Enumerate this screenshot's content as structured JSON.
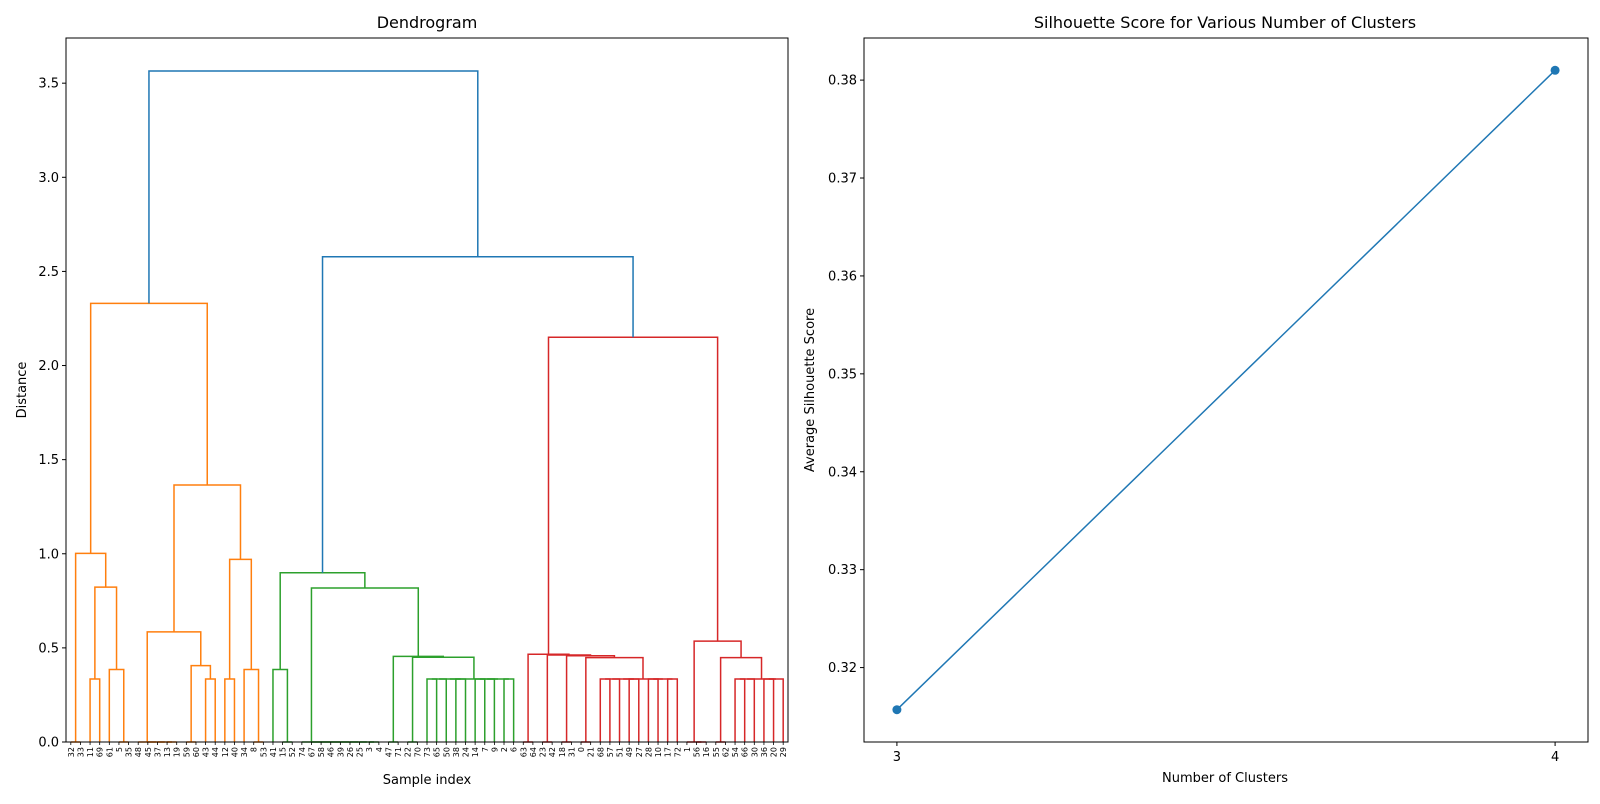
{
  "chart_data": [
    {
      "type": "dendrogram",
      "title": "Dendrogram",
      "xlabel": "Sample index",
      "ylabel": "Distance",
      "ylim": [
        0,
        3.74
      ],
      "yticks": [
        "0.0",
        "0.5",
        "1.0",
        "1.5",
        "2.0",
        "2.5",
        "3.0",
        "3.5"
      ],
      "ytick_values": [
        0,
        0.5,
        1.0,
        1.5,
        2.0,
        2.5,
        3.0,
        3.5
      ],
      "grid": false,
      "leaf_labels": [
        "32",
        "33",
        "11",
        "69",
        "61",
        "5",
        "35",
        "48",
        "45",
        "37",
        "13",
        "19",
        "59",
        "60",
        "43",
        "44",
        "12",
        "40",
        "34",
        "8",
        "53",
        "41",
        "15",
        "52",
        "74",
        "67",
        "58",
        "46",
        "39",
        "26",
        "25",
        "3",
        "4",
        "47",
        "71",
        "22",
        "70",
        "73",
        "65",
        "50",
        "38",
        "24",
        "14",
        "7",
        "9",
        "2",
        "6",
        "63",
        "64",
        "23",
        "42",
        "18",
        "31",
        "0",
        "21",
        "68",
        "57",
        "51",
        "49",
        "27",
        "28",
        "10",
        "17",
        "72",
        "1",
        "56",
        "16",
        "55",
        "62",
        "54",
        "66",
        "30",
        "36",
        "20",
        "29"
      ],
      "colors": {
        "orange": "#ff7f0e",
        "green": "#2ca02c",
        "red": "#d62728",
        "above_threshold": "#1f77b4"
      },
      "links": [
        {
          "id": "o1",
          "children": [
            0,
            1
          ],
          "height": 0,
          "color": "orange"
        },
        {
          "id": "o2",
          "children": [
            2,
            3
          ],
          "height": 0.335,
          "color": "orange"
        },
        {
          "id": "o3",
          "children": [
            5,
            6
          ],
          "height": 0,
          "color": "orange"
        },
        {
          "id": "o4",
          "children": [
            4,
            "o3"
          ],
          "height": 0.385,
          "color": "orange"
        },
        {
          "id": "o5",
          "children": [
            "o2",
            "o4"
          ],
          "height": 0.823,
          "color": "orange"
        },
        {
          "id": "o6",
          "children": [
            "o1",
            "o5"
          ],
          "height": 1.002,
          "color": "orange"
        },
        {
          "id": "o7",
          "children": [
            10,
            11
          ],
          "height": 0,
          "color": "orange"
        },
        {
          "id": "o8",
          "children": [
            9,
            "o7"
          ],
          "height": 0,
          "color": "orange"
        },
        {
          "id": "o9",
          "children": [
            8,
            "o8"
          ],
          "height": 0,
          "color": "orange"
        },
        {
          "id": "o10",
          "children": [
            7,
            "o9"
          ],
          "height": 0,
          "color": "orange"
        },
        {
          "id": "o11",
          "children": [
            12,
            13
          ],
          "height": 0,
          "color": "orange"
        },
        {
          "id": "o12",
          "children": [
            14,
            15
          ],
          "height": 0.335,
          "color": "orange"
        },
        {
          "id": "o13",
          "children": [
            "o11",
            "o12"
          ],
          "height": 0.406,
          "color": "orange"
        },
        {
          "id": "o14",
          "children": [
            "o10",
            "o13"
          ],
          "height": 0.585,
          "color": "orange"
        },
        {
          "id": "o15",
          "children": [
            16,
            17
          ],
          "height": 0.335,
          "color": "orange"
        },
        {
          "id": "o16",
          "children": [
            19,
            20
          ],
          "height": 0,
          "color": "orange"
        },
        {
          "id": "o17",
          "children": [
            18,
            "o16"
          ],
          "height": 0.385,
          "color": "orange"
        },
        {
          "id": "o18",
          "children": [
            "o15",
            "o17"
          ],
          "height": 0.97,
          "color": "orange"
        },
        {
          "id": "o19",
          "children": [
            "o14",
            "o18"
          ],
          "height": 1.365,
          "color": "orange"
        },
        {
          "id": "o20",
          "children": [
            "o6",
            "o19"
          ],
          "height": 2.33,
          "color": "orange"
        },
        {
          "id": "g1",
          "children": [
            22,
            23
          ],
          "height": 0,
          "color": "green"
        },
        {
          "id": "g2",
          "children": [
            21,
            "g1"
          ],
          "height": 0.385,
          "color": "green"
        },
        {
          "id": "g3",
          "children": [
            31,
            32
          ],
          "height": 0,
          "color": "green"
        },
        {
          "id": "g4",
          "children": [
            30,
            "g3"
          ],
          "height": 0,
          "color": "green"
        },
        {
          "id": "g5",
          "children": [
            29,
            "g4"
          ],
          "height": 0,
          "color": "green"
        },
        {
          "id": "g6",
          "children": [
            28,
            "g5"
          ],
          "height": 0,
          "color": "green"
        },
        {
          "id": "g7",
          "children": [
            27,
            "g6"
          ],
          "height": 0,
          "color": "green"
        },
        {
          "id": "g8",
          "children": [
            26,
            "g7"
          ],
          "height": 0,
          "color": "green"
        },
        {
          "id": "g9",
          "children": [
            25,
            "g8"
          ],
          "height": 0,
          "color": "green"
        },
        {
          "id": "g10",
          "children": [
            24,
            "g9"
          ],
          "height": 0,
          "color": "green"
        },
        {
          "id": "g11",
          "children": [
            33,
            34
          ],
          "height": 0,
          "color": "green"
        },
        {
          "id": "g12",
          "children": [
            35,
            36
          ],
          "height": 0,
          "color": "green"
        },
        {
          "id": "g13",
          "children": [
            37,
            38
          ],
          "height": 0.335,
          "color": "green"
        },
        {
          "id": "g14",
          "children": [
            "g13",
            39
          ],
          "height": 0.335,
          "color": "green"
        },
        {
          "id": "g15",
          "children": [
            40,
            41
          ],
          "height": 0.335,
          "color": "green"
        },
        {
          "id": "g16",
          "children": [
            "g14",
            "g15"
          ],
          "height": 0.335,
          "color": "green"
        },
        {
          "id": "g17",
          "children": [
            42,
            43
          ],
          "height": 0.335,
          "color": "green"
        },
        {
          "id": "g18",
          "children": [
            "g17",
            44
          ],
          "height": 0.335,
          "color": "green"
        },
        {
          "id": "g19",
          "children": [
            45,
            46
          ],
          "height": 0.335,
          "color": "green"
        },
        {
          "id": "g20",
          "children": [
            "g18",
            "g19"
          ],
          "height": 0.335,
          "color": "green"
        },
        {
          "id": "g21",
          "children": [
            "g16",
            "g20"
          ],
          "height": 0.335,
          "color": "green"
        },
        {
          "id": "g22",
          "children": [
            "g12",
            "g21"
          ],
          "height": 0.45,
          "color": "green"
        },
        {
          "id": "g23",
          "children": [
            "g11",
            "g22"
          ],
          "height": 0.455,
          "color": "green"
        },
        {
          "id": "g24",
          "children": [
            "g10",
            "g23"
          ],
          "height": 0.818,
          "color": "green"
        },
        {
          "id": "g25",
          "children": [
            "g2",
            "g24"
          ],
          "height": 0.899,
          "color": "green"
        },
        {
          "id": "r1",
          "children": [
            47,
            48
          ],
          "height": 0,
          "color": "red"
        },
        {
          "id": "r2",
          "children": [
            49,
            50
          ],
          "height": 0,
          "color": "red"
        },
        {
          "id": "r3",
          "children": [
            51,
            52
          ],
          "height": 0,
          "color": "red"
        },
        {
          "id": "r4",
          "children": [
            53,
            54
          ],
          "height": 0,
          "color": "red"
        },
        {
          "id": "r5",
          "children": [
            55,
            56
          ],
          "height": 0.335,
          "color": "red"
        },
        {
          "id": "r6",
          "children": [
            "r5",
            57
          ],
          "height": 0.335,
          "color": "red"
        },
        {
          "id": "r7",
          "children": [
            58,
            59
          ],
          "height": 0.335,
          "color": "red"
        },
        {
          "id": "r8",
          "children": [
            "r6",
            "r7"
          ],
          "height": 0.335,
          "color": "red"
        },
        {
          "id": "r9",
          "children": [
            60,
            61
          ],
          "height": 0.335,
          "color": "red"
        },
        {
          "id": "r10",
          "children": [
            62,
            63
          ],
          "height": 0.335,
          "color": "red"
        },
        {
          "id": "r11",
          "children": [
            "r9",
            "r10"
          ],
          "height": 0.335,
          "color": "red"
        },
        {
          "id": "r12",
          "children": [
            "r8",
            "r11"
          ],
          "height": 0.335,
          "color": "red"
        },
        {
          "id": "r13",
          "children": [
            "r4",
            "r12"
          ],
          "height": 0.448,
          "color": "red"
        },
        {
          "id": "r14",
          "children": [
            "r3",
            "r13"
          ],
          "height": 0.458,
          "color": "red"
        },
        {
          "id": "r15",
          "children": [
            "r2",
            "r14"
          ],
          "height": 0.462,
          "color": "red"
        },
        {
          "id": "r16",
          "children": [
            "r1",
            "r15"
          ],
          "height": 0.466,
          "color": "red"
        },
        {
          "id": "r17",
          "children": [
            65,
            66
          ],
          "height": 0,
          "color": "red"
        },
        {
          "id": "r18",
          "children": [
            64,
            "r17"
          ],
          "height": 0,
          "color": "red"
        },
        {
          "id": "r19",
          "children": [
            67,
            68
          ],
          "height": 0,
          "color": "red"
        },
        {
          "id": "r20",
          "children": [
            69,
            70
          ],
          "height": 0.335,
          "color": "red"
        },
        {
          "id": "r21",
          "children": [
            "r20",
            71
          ],
          "height": 0.335,
          "color": "red"
        },
        {
          "id": "r22",
          "children": [
            72,
            73
          ],
          "height": 0.335,
          "color": "red"
        },
        {
          "id": "r23",
          "children": [
            "r22",
            74
          ],
          "height": 0.335,
          "color": "red"
        },
        {
          "id": "r24",
          "children": [
            "r21",
            "r23"
          ],
          "height": 0.335,
          "color": "red"
        },
        {
          "id": "r25",
          "children": [
            "r19",
            "r24"
          ],
          "height": 0.448,
          "color": "red"
        },
        {
          "id": "r26",
          "children": [
            "r18",
            "r25"
          ],
          "height": 0.536,
          "color": "red"
        },
        {
          "id": "r27",
          "children": [
            "r16",
            "r26"
          ],
          "height": 2.15,
          "color": "red"
        },
        {
          "id": "b1",
          "children": [
            "g25",
            "r27"
          ],
          "height": 2.578,
          "color": "above_threshold"
        },
        {
          "id": "b2",
          "children": [
            "o20",
            "b1"
          ],
          "height": 3.565,
          "color": "above_threshold"
        }
      ]
    },
    {
      "type": "line",
      "title": "Silhouette Score for Various Number of Clusters",
      "xlabel": "Number of Clusters",
      "ylabel": "Average Silhouette Score",
      "x": [
        3,
        4
      ],
      "y": [
        0.3157,
        0.381
      ],
      "xlim": [
        2.95,
        4.05
      ],
      "ylim": [
        0.3124,
        0.3843
      ],
      "xticks": [
        "3",
        "4"
      ],
      "xtick_values": [
        3,
        4
      ],
      "yticks": [
        "0.32",
        "0.33",
        "0.34",
        "0.35",
        "0.36",
        "0.37",
        "0.38"
      ],
      "ytick_values": [
        0.32,
        0.33,
        0.34,
        0.35,
        0.36,
        0.37,
        0.38
      ],
      "marker": "circle",
      "color": "#1f77b4",
      "grid": false
    }
  ]
}
